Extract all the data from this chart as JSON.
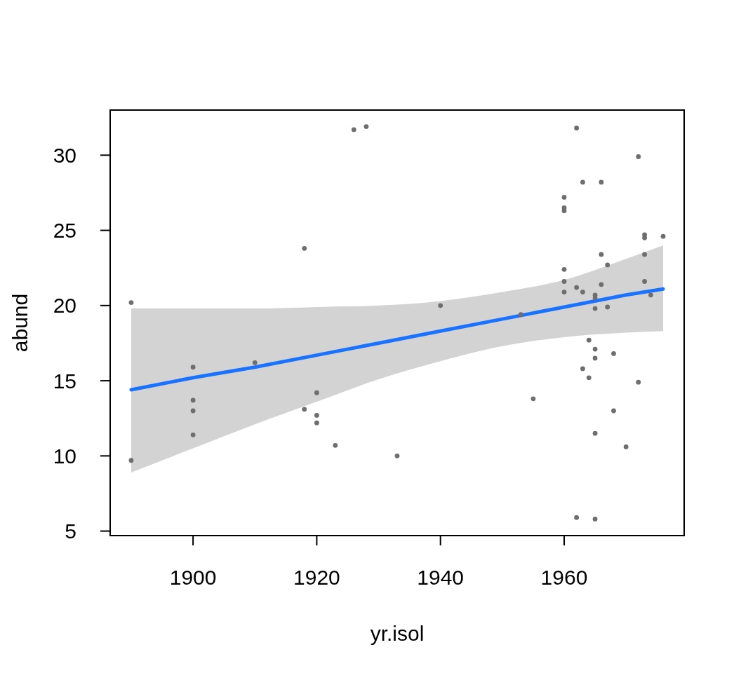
{
  "chart_data": {
    "type": "scatter",
    "xlabel": "yr.isol",
    "ylabel": "abund",
    "xlim": [
      1886.6,
      1979.4
    ],
    "ylim": [
      4.7,
      33.0
    ],
    "xticks": [
      1900,
      1920,
      1940,
      1960
    ],
    "yticks": [
      5,
      10,
      15,
      20,
      25,
      30
    ],
    "series": [
      {
        "marker": "circle",
        "color": "#6e6e6e",
        "x": [
          1890,
          1890,
          1900,
          1900,
          1900,
          1900,
          1910,
          1918,
          1918,
          1920,
          1920,
          1920,
          1923,
          1926,
          1928,
          1933,
          1940,
          1953,
          1955,
          1960,
          1960,
          1960,
          1960,
          1960,
          1960,
          1962,
          1962,
          1962,
          1963,
          1963,
          1963,
          1964,
          1964,
          1965,
          1965,
          1965,
          1965,
          1965,
          1965,
          1965,
          1966,
          1966,
          1966,
          1967,
          1967,
          1968,
          1968,
          1970,
          1972,
          1972,
          1973,
          1973,
          1973,
          1973,
          1974,
          1976
        ],
        "values": [
          20.2,
          9.7,
          15.9,
          13.7,
          13.0,
          11.4,
          16.2,
          23.8,
          13.1,
          14.2,
          12.7,
          12.2,
          10.7,
          31.7,
          31.9,
          10.0,
          20.0,
          19.4,
          13.8,
          27.2,
          26.5,
          26.3,
          22.4,
          21.6,
          20.9,
          31.8,
          21.2,
          5.9,
          28.2,
          20.9,
          15.8,
          17.7,
          15.2,
          20.7,
          20.5,
          19.8,
          17.1,
          16.5,
          11.5,
          5.8,
          28.2,
          23.4,
          21.4,
          22.7,
          19.9,
          16.8,
          13.0,
          10.6,
          29.9,
          14.9,
          24.7,
          24.5,
          23.4,
          21.6,
          20.7,
          24.6
        ]
      },
      {
        "type": "line",
        "color": "#1a73ff",
        "x": [
          1890,
          1900,
          1910,
          1920,
          1930,
          1940,
          1950,
          1960,
          1970,
          1976
        ],
        "values": [
          14.4,
          15.2,
          15.9,
          16.7,
          17.5,
          18.3,
          19.1,
          19.9,
          20.7,
          21.1
        ],
        "lower": [
          8.9,
          10.5,
          12.1,
          13.6,
          15.1,
          16.3,
          17.3,
          17.9,
          18.2,
          18.3
        ],
        "upper": [
          19.8,
          19.8,
          19.8,
          19.9,
          20.0,
          20.3,
          20.9,
          21.7,
          23.1,
          24.0
        ]
      }
    ]
  }
}
